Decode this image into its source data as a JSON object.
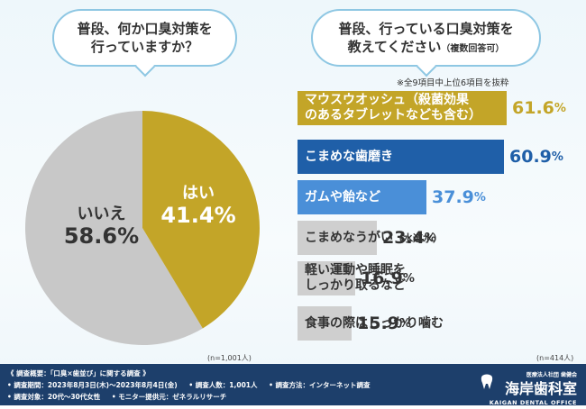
{
  "left_question": {
    "line1": "普段、何か口臭対策を",
    "line2": "行っていますか？"
  },
  "right_question": {
    "line1": "普段、行っている口臭対策を",
    "line2_main": "教えてください",
    "line2_small": "（複数回答可）"
  },
  "note": "※全9項目中上位6項目を抜粋",
  "n_left": "(n=1,001人)",
  "n_right": "(n=414人)",
  "chart_data": [
    {
      "type": "pie",
      "title": "普段、何か口臭対策を行っていますか？",
      "slices": [
        {
          "label": "はい",
          "value": 41.4,
          "display": "41.4",
          "unit": "%",
          "color": "#c3a528"
        },
        {
          "label": "いいえ",
          "value": 58.6,
          "display": "58.6",
          "unit": "%",
          "color": "#c8c8c8"
        }
      ]
    },
    {
      "type": "bar",
      "orientation": "horizontal",
      "title": "普段、行っている口臭対策を教えてください（複数回答可）",
      "unit": "%",
      "items": [
        {
          "label_line1": "マウスウオッシュ（殺菌効果",
          "label_line2": "のあるタブレットなども含む）",
          "value": 61.6,
          "display": "61.6",
          "color": "#c3a528",
          "dark_text": false
        },
        {
          "label_line1": "こまめな歯磨き",
          "label_line2": "",
          "value": 60.9,
          "display": "60.9",
          "color": "#1f5fa8",
          "dark_text": false
        },
        {
          "label_line1": "ガムや飴など",
          "label_line2": "",
          "value": 37.9,
          "display": "37.9",
          "color": "#4a8fd8",
          "dark_text": false
        },
        {
          "label_line1": "こまめなうがい",
          "label_small": "（水道水）",
          "label_line2": "",
          "value": 23.4,
          "display": "23.4",
          "color": "#cfcfcf",
          "dark_text": true
        },
        {
          "label_line1": "軽い運動や睡眠を",
          "label_line2": "しっかり取るなど",
          "value": 16.9,
          "display": "16.9",
          "color": "#cfcfcf",
          "dark_text": true
        },
        {
          "label_line1": "食事の際はしっかり噛む",
          "label_line2": "",
          "value": 15.9,
          "display": "15.9",
          "color": "#cfcfcf",
          "dark_text": true
        }
      ]
    }
  ],
  "footer": {
    "line1": "《 調査概要：「口臭×歯並び」に関する調査 》",
    "period": "• 調査期間：2023年8月3日(木)～2023年8月4日(金)",
    "count": "• 調査人数：1,001人",
    "method": "• 調査方法：インターネット調査",
    "target": "• 調査対象：20代～30代女性",
    "provider": "• モニター提供元：ゼネラルリサーチ"
  },
  "logo": {
    "small": "医療法人社団 歯健会",
    "big": "海岸歯科室",
    "en": "KAIGAN DENTAL OFFICE"
  }
}
